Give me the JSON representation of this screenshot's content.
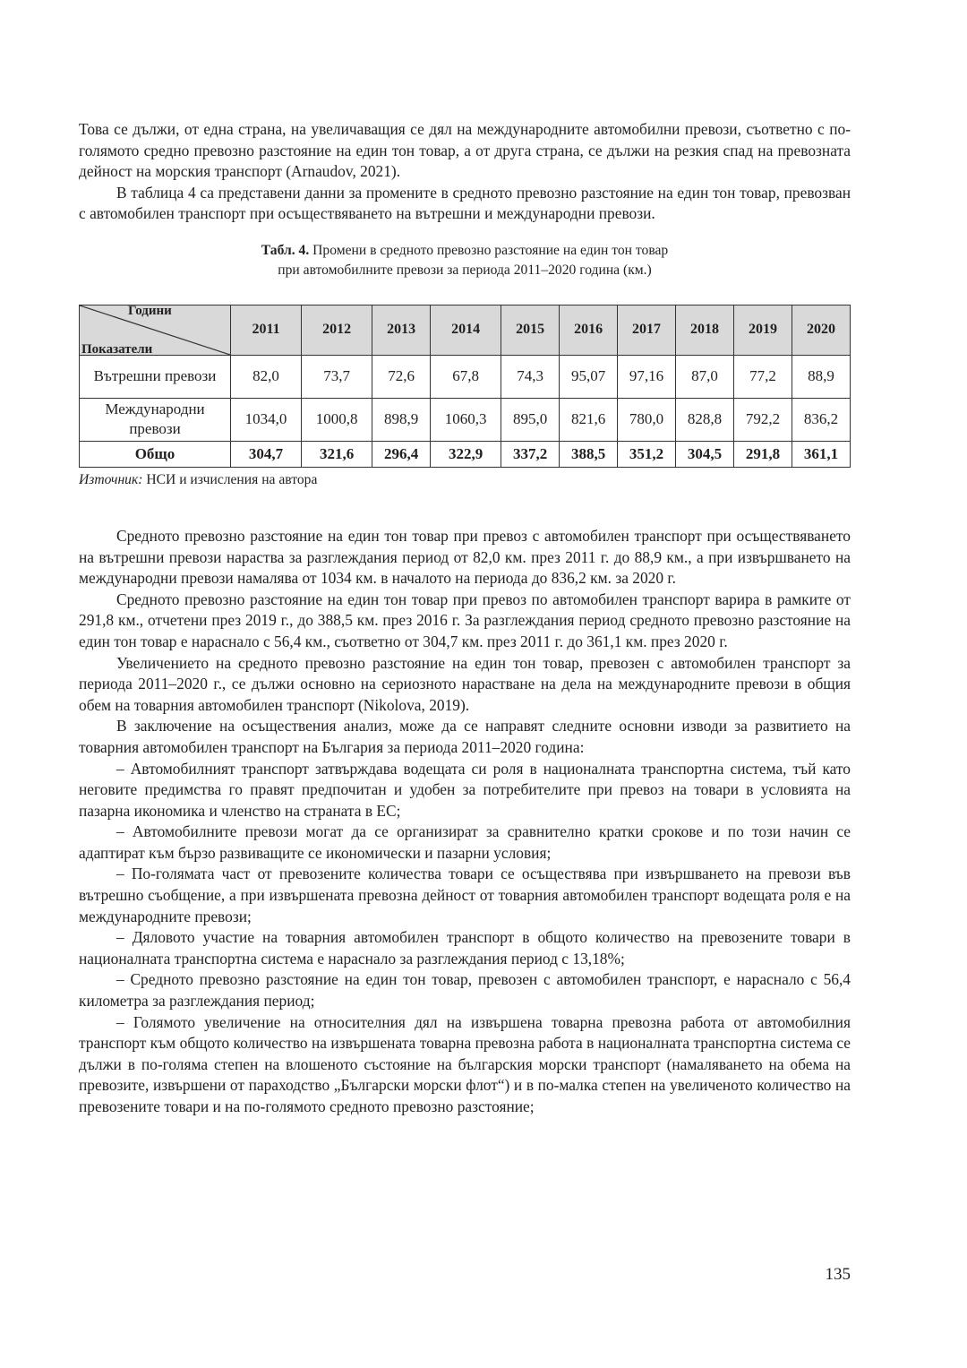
{
  "intro_paragraphs": [
    "Това се дължи, от една страна, на увеличаващия се дял на международните автомобилни превози, съответно с по-голямото средно превозно разстояние на един тон товар, а от друга страна, се дължи на резкия спад на превозната дейност на морския транспорт (Arnaudov, 2021).",
    "В таблица 4 са представени данни за промените в средното превозно разстояние на един тон товар, превозван с автомобилен транспорт при осъществяването на вътрешни и международни превози."
  ],
  "table": {
    "caption_label": "Табл. 4.",
    "caption_line1": "Промени в средното превозно разстояние на един тон товар",
    "caption_line2": "при автомобилните превози за периода 2011–2020 година (км.)",
    "corner_top": "Години",
    "corner_bottom": "Показатели",
    "years": [
      "2011",
      "2012",
      "2013",
      "2014",
      "2015",
      "2016",
      "2017",
      "2018",
      "2019",
      "2020"
    ],
    "rows": [
      {
        "label": "Вътрешни превози",
        "values": [
          "82,0",
          "73,7",
          "72,6",
          "67,8",
          "74,3",
          "95,07",
          "97,16",
          "87,0",
          "77,2",
          "88,9"
        ]
      },
      {
        "label": "Международни превози",
        "values": [
          "1034,0",
          "1000,8",
          "898,9",
          "1060,3",
          "895,0",
          "821,6",
          "780,0",
          "828,8",
          "792,2",
          "836,2"
        ]
      },
      {
        "label": "Общо",
        "values": [
          "304,7",
          "321,6",
          "296,4",
          "322,9",
          "337,2",
          "388,5",
          "351,2",
          "304,5",
          "291,8",
          "361,1"
        ]
      }
    ],
    "source_label": "Източник:",
    "source_text": " НСИ и изчисления на автора"
  },
  "body_paragraphs": [
    "Средното превозно разстояние на един тон товар при превоз с автомобилен транспорт при осъществяването на вътрешни превози нараства за разглеждания период от 82,0 км. през 2011 г. до 88,9 км., а при извършването на международни превози намалява от 1034 км. в началото на периода до 836,2 км. за 2020 г.",
    "Средното превозно разстояние на един тон товар при превоз по автомобилен транспорт варира в рамките от 291,8 км., отчетени през 2019 г., до 388,5 км. през 2016 г. За разглеждания период средното превозно разстояние на един тон товар е нараснало с 56,4 км., съответно от 304,7 км. през 2011 г. до 361,1 км. през 2020 г.",
    "Увеличението на средното превозно разстояние на един тон товар, превозен с автомобилен транспорт за периода 2011–2020 г., се дължи основно на сериозното нарастване на дела на международните превози в общия обем на товарния автомобилен транспорт (Nikolova, 2019).",
    "В заключение на осъществения анализ, може да се направят следните основни изводи за развитието на товарния автомобилен транспорт на България за периода 2011–2020 година:",
    "– Автомобилният транспорт затвърждава водещата си роля в националната транспортна система, тъй като неговите предимства го правят предпочитан и удобен за потребителите при превоз на товари в условията на пазарна икономика и членство на страната в ЕС;",
    "– Автомобилните превози могат да се организират за сравнително кратки срокове и по този начин се адаптират към бързо развиващите се икономически и пазарни условия;",
    "– По-голямата част от превозените количества товари се осъществява при извършването на превози във вътрешно съобщение, а при извършената превозна дейност от товарния автомобилен транспорт водещата роля е на международните превози;",
    "– Дяловото участие на товарния автомобилен транспорт в общото количество на превозените товари в националната транспортна система е нараснало за разглеждания период с 13,18%;",
    "– Средното превозно разстояние на един тон товар, превозен с автомобилен транспорт, е нараснало с 56,4 километра за разглеждания период;",
    "– Голямото увеличение на относителния дял на извършена товарна превозна работа от автомобилния транспорт към общото количество на извършената товарна превозна работа в националната транспортна система се дължи в по-голяма степен на влошеното състояние на българския морски транспорт (намаляването на обема на превозите, извършени от параходство „Български морски флот“) и в по-малка степен на увеличеното количество на превозените товари и на по-голямото средното превозно разстояние;"
  ],
  "page_number": "135"
}
